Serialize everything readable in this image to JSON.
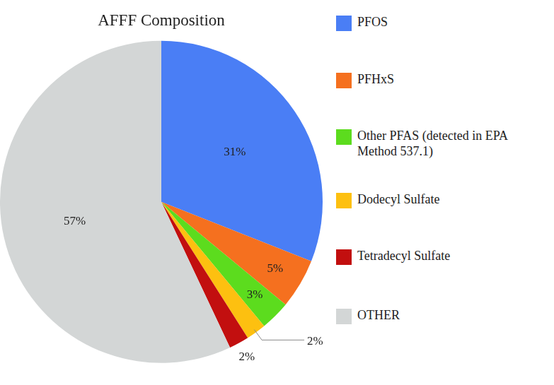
{
  "chart_data": {
    "type": "pie",
    "title": "AFFF Composition",
    "categories": [
      "PFOS",
      "PFHxS",
      "Other PFAS (detected in EPA Method 537.1)",
      "Dodecyl Sulfate",
      "Tetradecyl Sulfate",
      "OTHER"
    ],
    "values": [
      31,
      5,
      3,
      2,
      2,
      57
    ],
    "value_labels": [
      "31%",
      "5%",
      "3%",
      "2%",
      "2%",
      "57%"
    ],
    "colors": [
      "#4a7ef5",
      "#f5701f",
      "#5cdc1e",
      "#fdc010",
      "#c20f0f",
      "#d3d6d6"
    ],
    "legend": "right",
    "data_labels": true
  }
}
